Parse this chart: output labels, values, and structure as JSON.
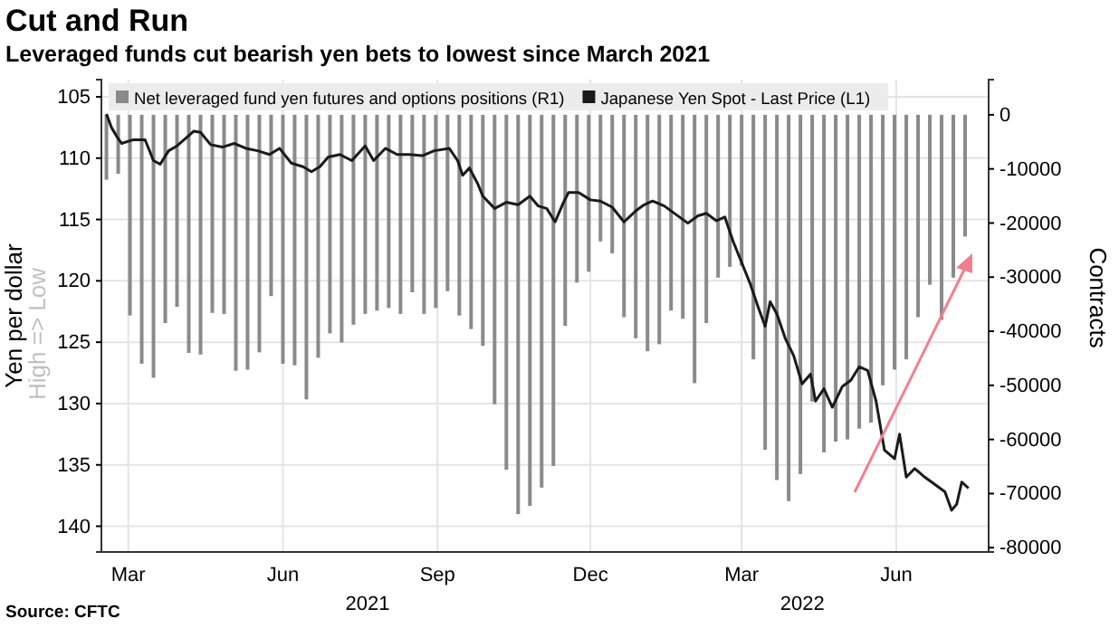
{
  "chart_data": {
    "type": "bar",
    "title": "Cut and Run",
    "subtitle": "Leveraged funds cut bearish yen bets to lowest since March 2021",
    "ylabel": "Yen per dollar",
    "y2label": "Contracts",
    "annotations": [
      "Source: CFTC",
      "High => Low",
      "2021",
      "2022"
    ],
    "xlim": [
      "2021-02-13",
      "2022-07-26"
    ],
    "xticks": [
      {
        "value": "2021-03-01",
        "label": "Mar"
      },
      {
        "value": "2021-06-01",
        "label": "Jun"
      },
      {
        "value": "2021-09-01",
        "label": "Sep"
      },
      {
        "value": "2021-12-01",
        "label": "Dec"
      },
      {
        "value": "2022-03-01",
        "label": "Mar"
      },
      {
        "value": "2022-06-01",
        "label": "Jun"
      }
    ],
    "ylim": [
      142.1,
      103.6
    ],
    "yticks": [
      105,
      110,
      115,
      120,
      125,
      130,
      135,
      140
    ],
    "y2lim": [
      -80800,
      6500
    ],
    "y2ticks": [
      0,
      -10000,
      -20000,
      -30000,
      -40000,
      -50000,
      -60000,
      -70000,
      -80000
    ],
    "grid": true,
    "legend": "top",
    "series": [
      {
        "name": "Net leveraged fund yen futures and options positions (R1)",
        "axis": "y2",
        "color": "#8a8a8a",
        "x": [
          "2021-02-16",
          "2021-02-23",
          "2021-03-02",
          "2021-03-09",
          "2021-03-16",
          "2021-03-23",
          "2021-03-30",
          "2021-04-06",
          "2021-04-13",
          "2021-04-20",
          "2021-04-27",
          "2021-05-04",
          "2021-05-11",
          "2021-05-18",
          "2021-05-25",
          "2021-06-01",
          "2021-06-08",
          "2021-06-15",
          "2021-06-22",
          "2021-06-29",
          "2021-07-06",
          "2021-07-13",
          "2021-07-20",
          "2021-07-27",
          "2021-08-03",
          "2021-08-10",
          "2021-08-17",
          "2021-08-24",
          "2021-08-31",
          "2021-09-07",
          "2021-09-14",
          "2021-09-21",
          "2021-09-28",
          "2021-10-05",
          "2021-10-12",
          "2021-10-19",
          "2021-10-26",
          "2021-11-02",
          "2021-11-09",
          "2021-11-16",
          "2021-11-23",
          "2021-11-30",
          "2021-12-07",
          "2021-12-14",
          "2021-12-21",
          "2021-12-28",
          "2022-01-04",
          "2022-01-11",
          "2022-01-18",
          "2022-01-25",
          "2022-02-01",
          "2022-02-08",
          "2022-02-15",
          "2022-02-22",
          "2022-03-01",
          "2022-03-08",
          "2022-03-15",
          "2022-03-22",
          "2022-03-29",
          "2022-04-05",
          "2022-04-12",
          "2022-04-19",
          "2022-04-26",
          "2022-05-03",
          "2022-05-10",
          "2022-05-17",
          "2022-05-24",
          "2022-05-31",
          "2022-06-07",
          "2022-06-14",
          "2022-06-21",
          "2022-06-28",
          "2022-07-05",
          "2022-07-12"
        ],
        "values": [
          -12000,
          -10900,
          -37100,
          -46000,
          -48600,
          -38500,
          -35500,
          -44000,
          -44300,
          -36600,
          -36800,
          -47300,
          -47100,
          -43900,
          -33500,
          -46000,
          -46300,
          -52600,
          -44900,
          -40400,
          -42100,
          -38800,
          -36800,
          -36200,
          -35700,
          -36800,
          -32800,
          -36800,
          -35700,
          -32600,
          -37100,
          -39600,
          -42700,
          -53500,
          -65600,
          -73800,
          -72300,
          -68900,
          -64900,
          -39000,
          -31000,
          -29000,
          -23400,
          -25600,
          -37400,
          -41300,
          -43700,
          -42400,
          -36200,
          -37700,
          -49600,
          -38500,
          -30100,
          -28100,
          -27900,
          -45200,
          -61900,
          -67500,
          -71400,
          -66400,
          -53000,
          -62400,
          -60400,
          -60000,
          -58000,
          -56900,
          -50000,
          -47100,
          -45200,
          -37400,
          -31400,
          -37900,
          -30100,
          -22500
        ]
      },
      {
        "name": "Japanese Yen Spot - Last Price (L1)",
        "type": "line",
        "axis": "y",
        "color": "#1a1a1a",
        "x": [
          "2021-02-16",
          "2021-02-19",
          "2021-02-22",
          "2021-02-25",
          "2021-03-04",
          "2021-03-11",
          "2021-03-16",
          "2021-03-20",
          "2021-03-25",
          "2021-03-30",
          "2021-04-04",
          "2021-04-09",
          "2021-04-13",
          "2021-04-19",
          "2021-04-26",
          "2021-05-03",
          "2021-05-10",
          "2021-05-17",
          "2021-05-24",
          "2021-05-30",
          "2021-06-06",
          "2021-06-13",
          "2021-06-18",
          "2021-06-23",
          "2021-06-28",
          "2021-07-05",
          "2021-07-12",
          "2021-07-20",
          "2021-07-25",
          "2021-08-01",
          "2021-08-08",
          "2021-08-15",
          "2021-08-23",
          "2021-08-30",
          "2021-09-08",
          "2021-09-13",
          "2021-09-16",
          "2021-09-20",
          "2021-09-25",
          "2021-09-28",
          "2021-10-05",
          "2021-10-12",
          "2021-10-19",
          "2021-10-26",
          "2021-10-31",
          "2021-11-05",
          "2021-11-10",
          "2021-11-15",
          "2021-11-18",
          "2021-11-24",
          "2021-12-01",
          "2021-12-07",
          "2021-12-14",
          "2021-12-21",
          "2021-12-28",
          "2022-01-02",
          "2022-01-07",
          "2022-01-14",
          "2022-01-21",
          "2022-01-28",
          "2022-02-03",
          "2022-02-08",
          "2022-02-14",
          "2022-02-19",
          "2022-02-24",
          "2022-03-01",
          "2022-03-06",
          "2022-03-11",
          "2022-03-15",
          "2022-03-18",
          "2022-03-22",
          "2022-03-27",
          "2022-04-01",
          "2022-04-06",
          "2022-04-11",
          "2022-04-14",
          "2022-04-19",
          "2022-04-24",
          "2022-04-30",
          "2022-05-05",
          "2022-05-10",
          "2022-05-15",
          "2022-05-20",
          "2022-05-25",
          "2022-05-31",
          "2022-06-03",
          "2022-06-07",
          "2022-06-12",
          "2022-06-18",
          "2022-06-23",
          "2022-06-30",
          "2022-07-04",
          "2022-07-07",
          "2022-07-10",
          "2022-07-14"
        ],
        "values": [
          106.4,
          107.5,
          108.2,
          108.8,
          108.5,
          108.5,
          110.2,
          110.5,
          109.4,
          109.0,
          108.4,
          107.8,
          107.9,
          108.9,
          109.1,
          108.8,
          109.2,
          109.4,
          109.7,
          109.2,
          110.4,
          110.7,
          111.1,
          110.7,
          109.9,
          109.7,
          110.2,
          109.0,
          110.2,
          109.2,
          109.7,
          109.7,
          109.8,
          109.4,
          109.2,
          110.2,
          111.4,
          110.8,
          112.1,
          113.1,
          114.1,
          113.6,
          113.8,
          113.1,
          113.9,
          114.1,
          115.2,
          113.6,
          112.8,
          112.8,
          113.4,
          113.5,
          114.0,
          115.2,
          114.3,
          113.8,
          113.5,
          113.9,
          114.6,
          115.3,
          114.7,
          114.5,
          115.1,
          114.8,
          116.8,
          118.5,
          120.2,
          122.2,
          123.7,
          121.7,
          122.7,
          124.7,
          126.1,
          128.4,
          127.6,
          129.8,
          128.8,
          130.3,
          128.6,
          128.1,
          127.0,
          127.3,
          129.8,
          133.8,
          134.5,
          132.5,
          136.0,
          135.3,
          136.0,
          136.5,
          137.2,
          138.7,
          138.2,
          136.4,
          136.9
        ]
      }
    ]
  }
}
